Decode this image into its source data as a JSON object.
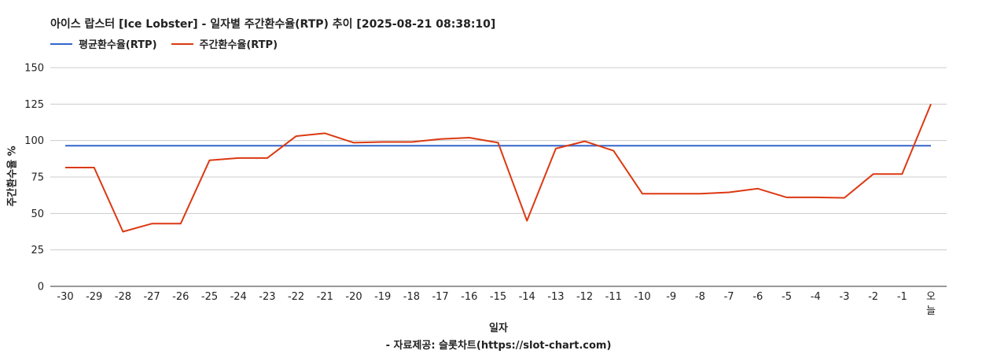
{
  "colors": {
    "average": "#3366cc",
    "weekly": "#dc3912",
    "grid": "#cccccc",
    "axis": "#333333"
  },
  "chart_data": {
    "type": "line",
    "title": "아이스 랍스터 [Ice Lobster] - 일자별 주간환수율(RTP) 추이 [2025-08-21 08:38:10]",
    "xlabel": "일자",
    "ylabel": "주간환수율 %",
    "source": "- 자료제공: 슬롯차트(https://slot-chart.com)",
    "ylim": [
      0,
      150
    ],
    "yticks": [
      0,
      25,
      50,
      75,
      100,
      125,
      150
    ],
    "grid": true,
    "legend_position": "top-left",
    "categories": [
      "-30",
      "-29",
      "-28",
      "-27",
      "-26",
      "-25",
      "-24",
      "-23",
      "-22",
      "-21",
      "-20",
      "-19",
      "-18",
      "-17",
      "-16",
      "-15",
      "-14",
      "-13",
      "-12",
      "-11",
      "-10",
      "-9",
      "-8",
      "-7",
      "-6",
      "-5",
      "-4",
      "-3",
      "-2",
      "-1",
      "오늘"
    ],
    "series": [
      {
        "name": "평균환수율(RTP)",
        "color": "#3366cc",
        "values": [
          96.5,
          96.5,
          96.5,
          96.5,
          96.5,
          96.5,
          96.5,
          96.5,
          96.5,
          96.5,
          96.5,
          96.5,
          96.5,
          96.5,
          96.5,
          96.5,
          96.5,
          96.5,
          96.5,
          96.5,
          96.5,
          96.5,
          96.5,
          96.5,
          96.5,
          96.5,
          96.5,
          96.5,
          96.5,
          96.5,
          96.5
        ]
      },
      {
        "name": "주간환수율(RTP)",
        "color": "#dc3912",
        "values": [
          81.5,
          81.5,
          37.5,
          43,
          43,
          86.5,
          88,
          88,
          103,
          105,
          98.5,
          99,
          99,
          101,
          102,
          98.5,
          45,
          94.5,
          99.5,
          93,
          63.5,
          63.5,
          63.5,
          64.5,
          67,
          61,
          61,
          60.7,
          77,
          77,
          125
        ]
      }
    ]
  }
}
